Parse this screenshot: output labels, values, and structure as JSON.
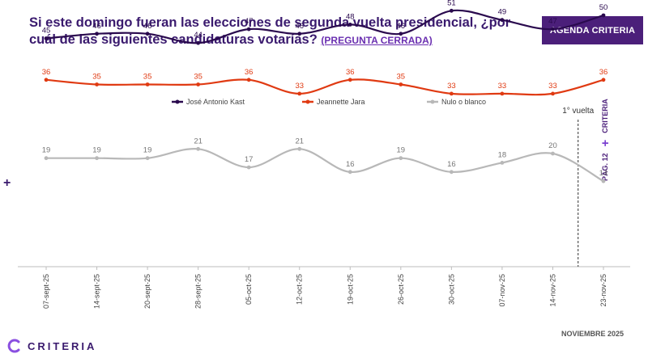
{
  "header": {
    "title": "Si este domingo fueran las elecciones de segunda vuelta presidencial, ¿por cuál de las siguientes candidaturas votarías?",
    "question_tag": "(PREGUNTA CERRADA)",
    "badge": "AGENDA CRITERIA"
  },
  "side": {
    "page": "PÁG. 12",
    "brand": "CRITERIA",
    "plus": "+"
  },
  "footer": {
    "logo": "CRITERIA",
    "date": "NOVIEMBRE 2025"
  },
  "chart_data": {
    "type": "line",
    "categories": [
      "07-sept-25",
      "14-sept-25",
      "20-sept-25",
      "28-sept-25",
      "05-oct-25",
      "12-oct-25",
      "19-oct-25",
      "26-oct-25",
      "30-oct-25",
      "07-nov-25",
      "14-nov-25",
      "23-nov-25"
    ],
    "series": [
      {
        "name": "José Antonio Kast",
        "color": "#2a0a4e",
        "values": [
          45,
          46,
          46,
          44,
          47,
          46,
          48,
          46,
          51,
          49,
          47,
          50
        ]
      },
      {
        "name": "Jeannette Jara",
        "color": "#e03a12",
        "values": [
          36,
          35,
          35,
          35,
          36,
          33,
          36,
          35,
          33,
          33,
          33,
          36
        ]
      },
      {
        "name": "Nulo o blanco",
        "color": "#b8b8b8",
        "values": [
          19,
          19,
          19,
          21,
          17,
          21,
          16,
          19,
          16,
          18,
          20,
          14
        ]
      }
    ],
    "annotation": {
      "label": "1° vuelta",
      "between": [
        "14-nov-25",
        "23-nov-25"
      ]
    },
    "legend_position": "top",
    "ylim": [
      0,
      60
    ]
  }
}
